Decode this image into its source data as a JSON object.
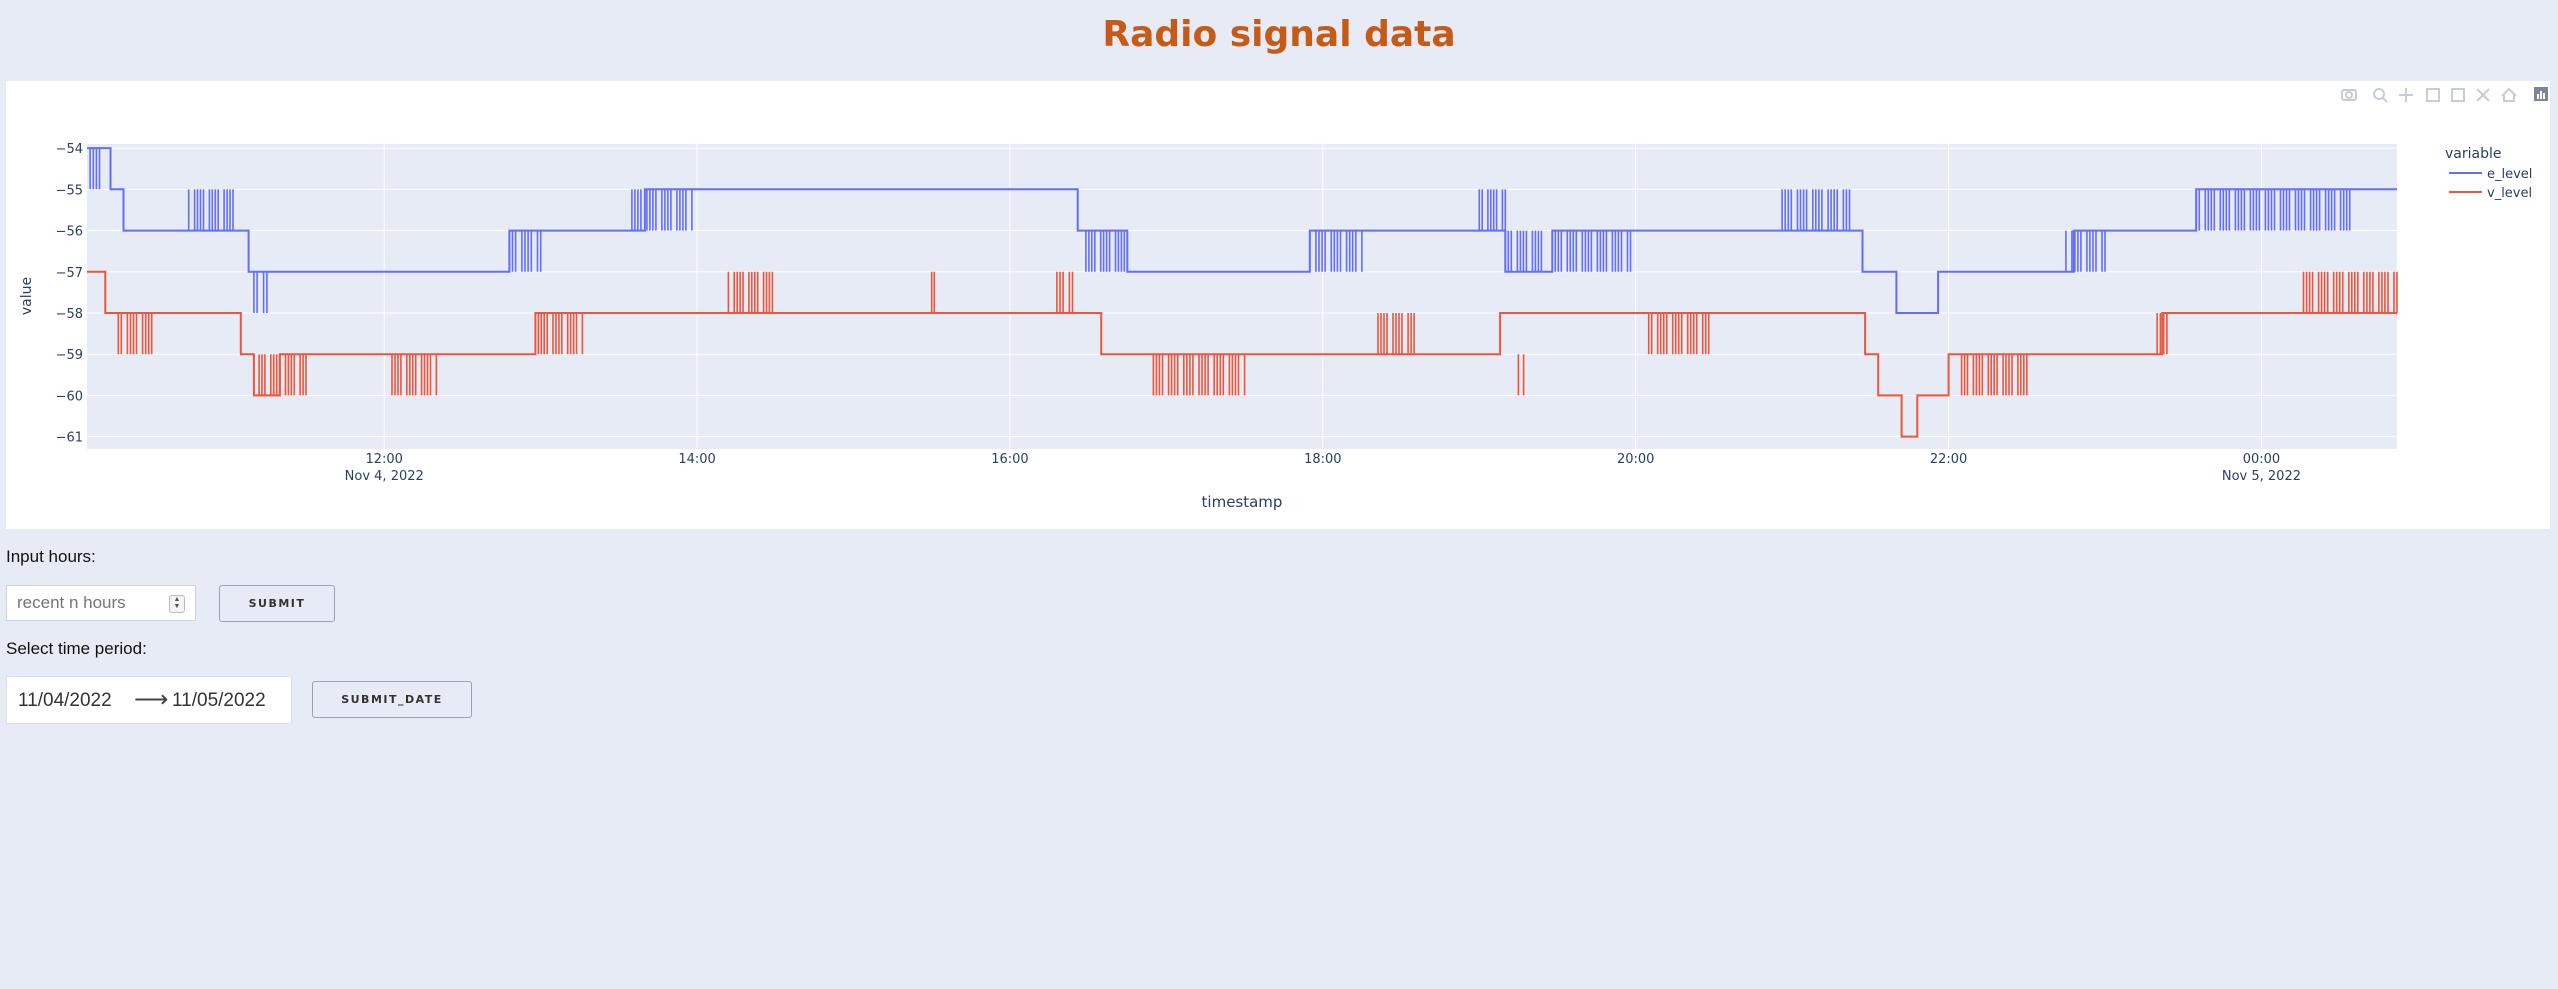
{
  "page": {
    "title": "Radio signal data"
  },
  "chart_data": {
    "type": "line",
    "title": "",
    "xlabel": "timestamp",
    "ylabel": "value",
    "x_range": [
      "2022-11-04 10:06",
      "2022-11-05 00:52"
    ],
    "ylim": [
      -61.3,
      -53.9
    ],
    "y_ticks": [
      -54,
      -55,
      -56,
      -57,
      -58,
      -59,
      -60,
      -61
    ],
    "y_tick_labels": [
      "−54",
      "−55",
      "−56",
      "−57",
      "−58",
      "−59",
      "−60",
      "−61"
    ],
    "x_ticks": [
      {
        "time": "2022-11-04 12:00",
        "label": "12:00",
        "sublabel": "Nov 4, 2022"
      },
      {
        "time": "2022-11-04 14:00",
        "label": "14:00",
        "sublabel": ""
      },
      {
        "time": "2022-11-04 16:00",
        "label": "16:00",
        "sublabel": ""
      },
      {
        "time": "2022-11-04 18:00",
        "label": "18:00",
        "sublabel": ""
      },
      {
        "time": "2022-11-04 20:00",
        "label": "20:00",
        "sublabel": ""
      },
      {
        "time": "2022-11-04 22:00",
        "label": "22:00",
        "sublabel": ""
      },
      {
        "time": "2022-11-05 00:00",
        "label": "00:00",
        "sublabel": "Nov 5, 2022"
      }
    ],
    "grid": true,
    "legend": {
      "title": "variable",
      "position": "top-right"
    },
    "series": [
      {
        "name": "e_level",
        "color": "#636efa",
        "steps": [
          [
            "2022-11-04 10:06",
            -54
          ],
          [
            "2022-11-04 10:15",
            -55
          ],
          [
            "2022-11-04 10:20",
            -56
          ],
          [
            "2022-11-04 11:08",
            -57
          ],
          [
            "2022-11-04 12:48",
            -56
          ],
          [
            "2022-11-04 13:40",
            -55
          ],
          [
            "2022-11-04 16:26",
            -56
          ],
          [
            "2022-11-04 16:45",
            -57
          ],
          [
            "2022-11-04 17:55",
            -56
          ],
          [
            "2022-11-04 19:10",
            -57
          ],
          [
            "2022-11-04 19:28",
            -56
          ],
          [
            "2022-11-04 21:27",
            -57
          ],
          [
            "2022-11-04 21:40",
            -58
          ],
          [
            "2022-11-04 21:56",
            -57
          ],
          [
            "2022-11-04 22:48",
            -56
          ],
          [
            "2022-11-04 23:35",
            -55
          ],
          [
            "2022-11-05 00:52",
            -55
          ]
        ],
        "flicker": [
          [
            "2022-11-04 10:06",
            "2022-11-04 10:12",
            -55,
            -54
          ],
          [
            "2022-11-04 10:45",
            "2022-11-04 11:02",
            -56,
            -55
          ],
          [
            "2022-11-04 11:10",
            "2022-11-04 11:15",
            -57,
            -58
          ],
          [
            "2022-11-04 12:48",
            "2022-11-04 13:00",
            -57,
            -56
          ],
          [
            "2022-11-04 13:35",
            "2022-11-04 13:58",
            -56,
            -55
          ],
          [
            "2022-11-04 16:28",
            "2022-11-04 16:45",
            -56,
            -57
          ],
          [
            "2022-11-04 17:55",
            "2022-11-04 18:15",
            -56,
            -57
          ],
          [
            "2022-11-04 19:00",
            "2022-11-04 19:10",
            -55,
            -56
          ],
          [
            "2022-11-04 19:10",
            "2022-11-04 19:25",
            -56,
            -57
          ],
          [
            "2022-11-04 19:28",
            "2022-11-04 19:58",
            -56,
            -57
          ],
          [
            "2022-11-04 20:55",
            "2022-11-04 21:22",
            -56,
            -55
          ],
          [
            "2022-11-04 22:45",
            "2022-11-04 23:00",
            -57,
            -56
          ],
          [
            "2022-11-04 23:35",
            "2022-11-05 00:35",
            -55,
            -56
          ]
        ]
      },
      {
        "name": "v_level",
        "color": "#ef553b",
        "steps": [
          [
            "2022-11-04 10:06",
            -57
          ],
          [
            "2022-11-04 10:13",
            -58
          ],
          [
            "2022-11-04 11:05",
            -59
          ],
          [
            "2022-11-04 11:10",
            -60
          ],
          [
            "2022-11-04 11:20",
            -59
          ],
          [
            "2022-11-04 12:58",
            -58
          ],
          [
            "2022-11-04 16:20",
            -58
          ],
          [
            "2022-11-04 16:35",
            -59
          ],
          [
            "2022-11-04 19:08",
            -58
          ],
          [
            "2022-11-04 21:28",
            -59
          ],
          [
            "2022-11-04 21:33",
            -60
          ],
          [
            "2022-11-04 21:42",
            -61
          ],
          [
            "2022-11-04 21:48",
            -60
          ],
          [
            "2022-11-04 22:00",
            -59
          ],
          [
            "2022-11-04 23:22",
            -58
          ],
          [
            "2022-11-05 00:52",
            -58
          ]
        ],
        "flicker": [
          [
            "2022-11-04 10:18",
            "2022-11-04 10:32",
            -58,
            -59
          ],
          [
            "2022-11-04 11:12",
            "2022-11-04 11:30",
            -59,
            -60
          ],
          [
            "2022-11-04 12:03",
            "2022-11-04 12:20",
            -59,
            -60
          ],
          [
            "2022-11-04 12:58",
            "2022-11-04 13:16",
            -58,
            -59
          ],
          [
            "2022-11-04 14:12",
            "2022-11-04 14:30",
            -58,
            -57
          ],
          [
            "2022-11-04 15:30",
            "2022-11-04 15:32",
            -57,
            -58
          ],
          [
            "2022-11-04 16:18",
            "2022-11-04 16:24",
            -57,
            -58
          ],
          [
            "2022-11-04 16:55",
            "2022-11-04 17:30",
            -59,
            -60
          ],
          [
            "2022-11-04 18:20",
            "2022-11-04 18:35",
            -58,
            -59
          ],
          [
            "2022-11-04 19:15",
            "2022-11-04 19:17",
            -59,
            -60
          ],
          [
            "2022-11-04 20:05",
            "2022-11-04 20:28",
            -58,
            -59
          ],
          [
            "2022-11-04 22:05",
            "2022-11-04 22:30",
            -59,
            -60
          ],
          [
            "2022-11-04 23:20",
            "2022-11-04 23:25",
            -58,
            -59
          ],
          [
            "2022-11-05 00:15",
            "2022-11-05 00:52",
            -58,
            -57
          ]
        ]
      }
    ]
  },
  "controls": {
    "hours_label": "Input hours:",
    "hours_placeholder": "recent n hours",
    "submit_label": "SUBMIT",
    "period_label": "Select time period:",
    "start_date": "11/04/2022",
    "end_date": "11/05/2022",
    "date_arrow": "⟶",
    "submit_date_label": "SUBMIT_DATE"
  },
  "modebar_icons": [
    "camera-icon",
    "zoom-icon",
    "pan-icon",
    "zoom-in-icon",
    "zoom-out-icon",
    "autoscale-icon",
    "home-icon",
    "plotly-logo-icon"
  ]
}
